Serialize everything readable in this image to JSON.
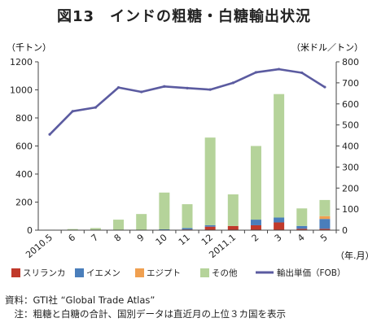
{
  "title": "図13　インドの粗糖・白糖輸出状況",
  "chart_data": {
    "type": "bar",
    "stacked": true,
    "left_axis_unit": "（千トン）",
    "right_axis_unit": "（米ドル／トン）",
    "x_axis_unit": "（年.月）",
    "left_ylim": [
      0,
      1200
    ],
    "left_ticks": [
      0,
      200,
      400,
      600,
      800,
      1000,
      1200
    ],
    "right_ylim": [
      0,
      800
    ],
    "right_ticks": [
      0,
      100,
      200,
      300,
      400,
      500,
      600,
      700,
      800
    ],
    "categories": [
      "2010.5",
      "6",
      "7",
      "8",
      "9",
      "10",
      "11",
      "12",
      "2011.1",
      "2",
      "3",
      "4",
      "5"
    ],
    "series": [
      {
        "name": "スリランカ",
        "color": "#c0392b",
        "values": [
          0,
          0,
          0,
          0,
          0,
          3,
          5,
          25,
          30,
          35,
          55,
          10,
          10
        ]
      },
      {
        "name": "イエメン",
        "color": "#4a7ebb",
        "values": [
          0,
          0,
          0,
          0,
          0,
          3,
          10,
          10,
          0,
          40,
          35,
          20,
          70
        ]
      },
      {
        "name": "エジプト",
        "color": "#f0a050",
        "values": [
          0,
          0,
          0,
          0,
          0,
          0,
          0,
          0,
          0,
          0,
          0,
          0,
          20
        ]
      },
      {
        "name": "その他",
        "color": "#b5d39a",
        "values": [
          3,
          8,
          15,
          75,
          115,
          262,
          170,
          625,
          225,
          525,
          880,
          125,
          115
        ]
      }
    ],
    "line": {
      "name": "輸出単価（FOB）",
      "color": "#5b5ba0",
      "axis": "right",
      "values": [
        455,
        565,
        583,
        678,
        657,
        683,
        675,
        668,
        700,
        750,
        765,
        748,
        680
      ]
    },
    "grid": false,
    "legend_position": "bottom"
  },
  "source": {
    "label": "資料：",
    "text": "GTI社 “Global Trade Atlas”",
    "note_label": "　注：",
    "note": "粗糖と白糖の合計、国別データは直近月の上位３カ国を表示"
  }
}
